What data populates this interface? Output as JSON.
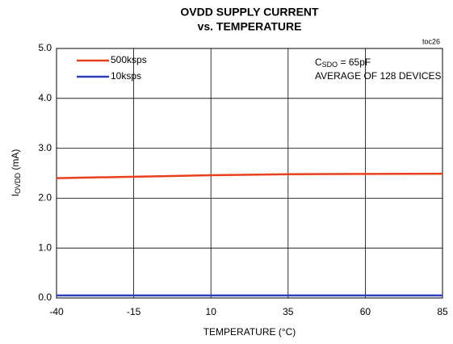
{
  "chart_data": {
    "type": "line",
    "title": "OVDD SUPPLY CURRENT",
    "subtitle": "vs. TEMPERATURE",
    "figure_id": "toc26",
    "x_label": "TEMPERATURE (°C)",
    "y_label": {
      "main": "I",
      "sub": "OVDD",
      "unit": " (mA)"
    },
    "annotations": [
      {
        "main": "C",
        "sub": "SDO",
        "rest": " = 65pF"
      },
      {
        "main": "AVERAGE OF 128 DEVICES"
      }
    ],
    "x": [
      -40,
      -15,
      10,
      35,
      60,
      85
    ],
    "series": [
      {
        "name": "500ksps",
        "color": "#e8401c",
        "values": [
          2.4,
          2.43,
          2.46,
          2.48,
          2.485,
          2.49
        ]
      },
      {
        "name": "10ksps",
        "color": "#2b3fbf",
        "values": [
          0.05,
          0.05,
          0.05,
          0.05,
          0.05,
          0.05
        ]
      }
    ],
    "xlim": [
      -40,
      85
    ],
    "xticks": [
      -40,
      -15,
      10,
      35,
      60,
      85
    ],
    "ylim": [
      0,
      5
    ],
    "yticks": [
      {
        "value": 0,
        "label": "0.0"
      },
      {
        "value": 1,
        "label": "1.0"
      },
      {
        "value": 2,
        "label": "2.0"
      },
      {
        "value": 3,
        "label": "3.0"
      },
      {
        "value": 4,
        "label": "4.0"
      },
      {
        "value": 5,
        "label": "5.0"
      }
    ],
    "grid": true,
    "legend": "upper left"
  }
}
